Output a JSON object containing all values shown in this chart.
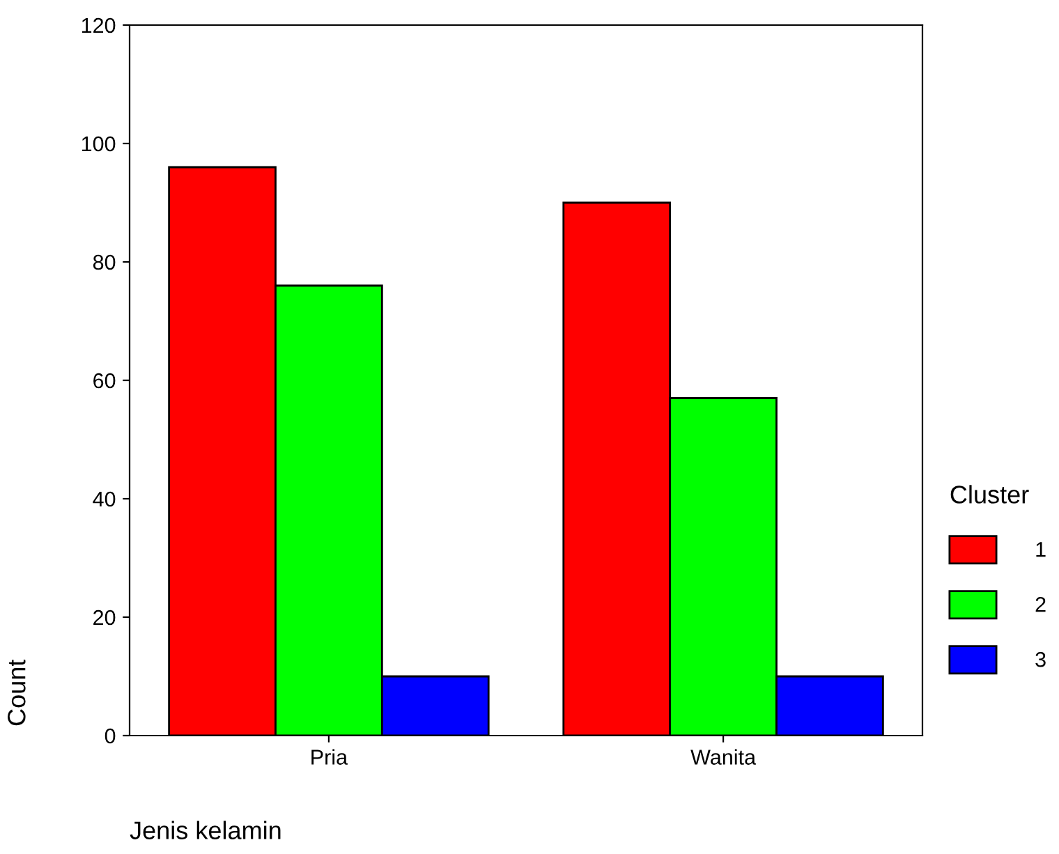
{
  "chart_data": {
    "type": "bar",
    "xlabel": "Jenis kelamin",
    "ylabel": "Count",
    "legend_title": "Cluster",
    "categories": [
      "Pria",
      "Wanita"
    ],
    "series": [
      {
        "name": "1",
        "color": "#ff0000",
        "values": [
          96,
          90
        ]
      },
      {
        "name": "2",
        "color": "#00ff00",
        "values": [
          76,
          57
        ]
      },
      {
        "name": "3",
        "color": "#0000ff",
        "values": [
          10,
          10
        ]
      }
    ],
    "ylim": [
      0,
      120
    ],
    "yticks": [
      0,
      20,
      40,
      60,
      80,
      100,
      120
    ],
    "grid": false,
    "legend": "right"
  }
}
